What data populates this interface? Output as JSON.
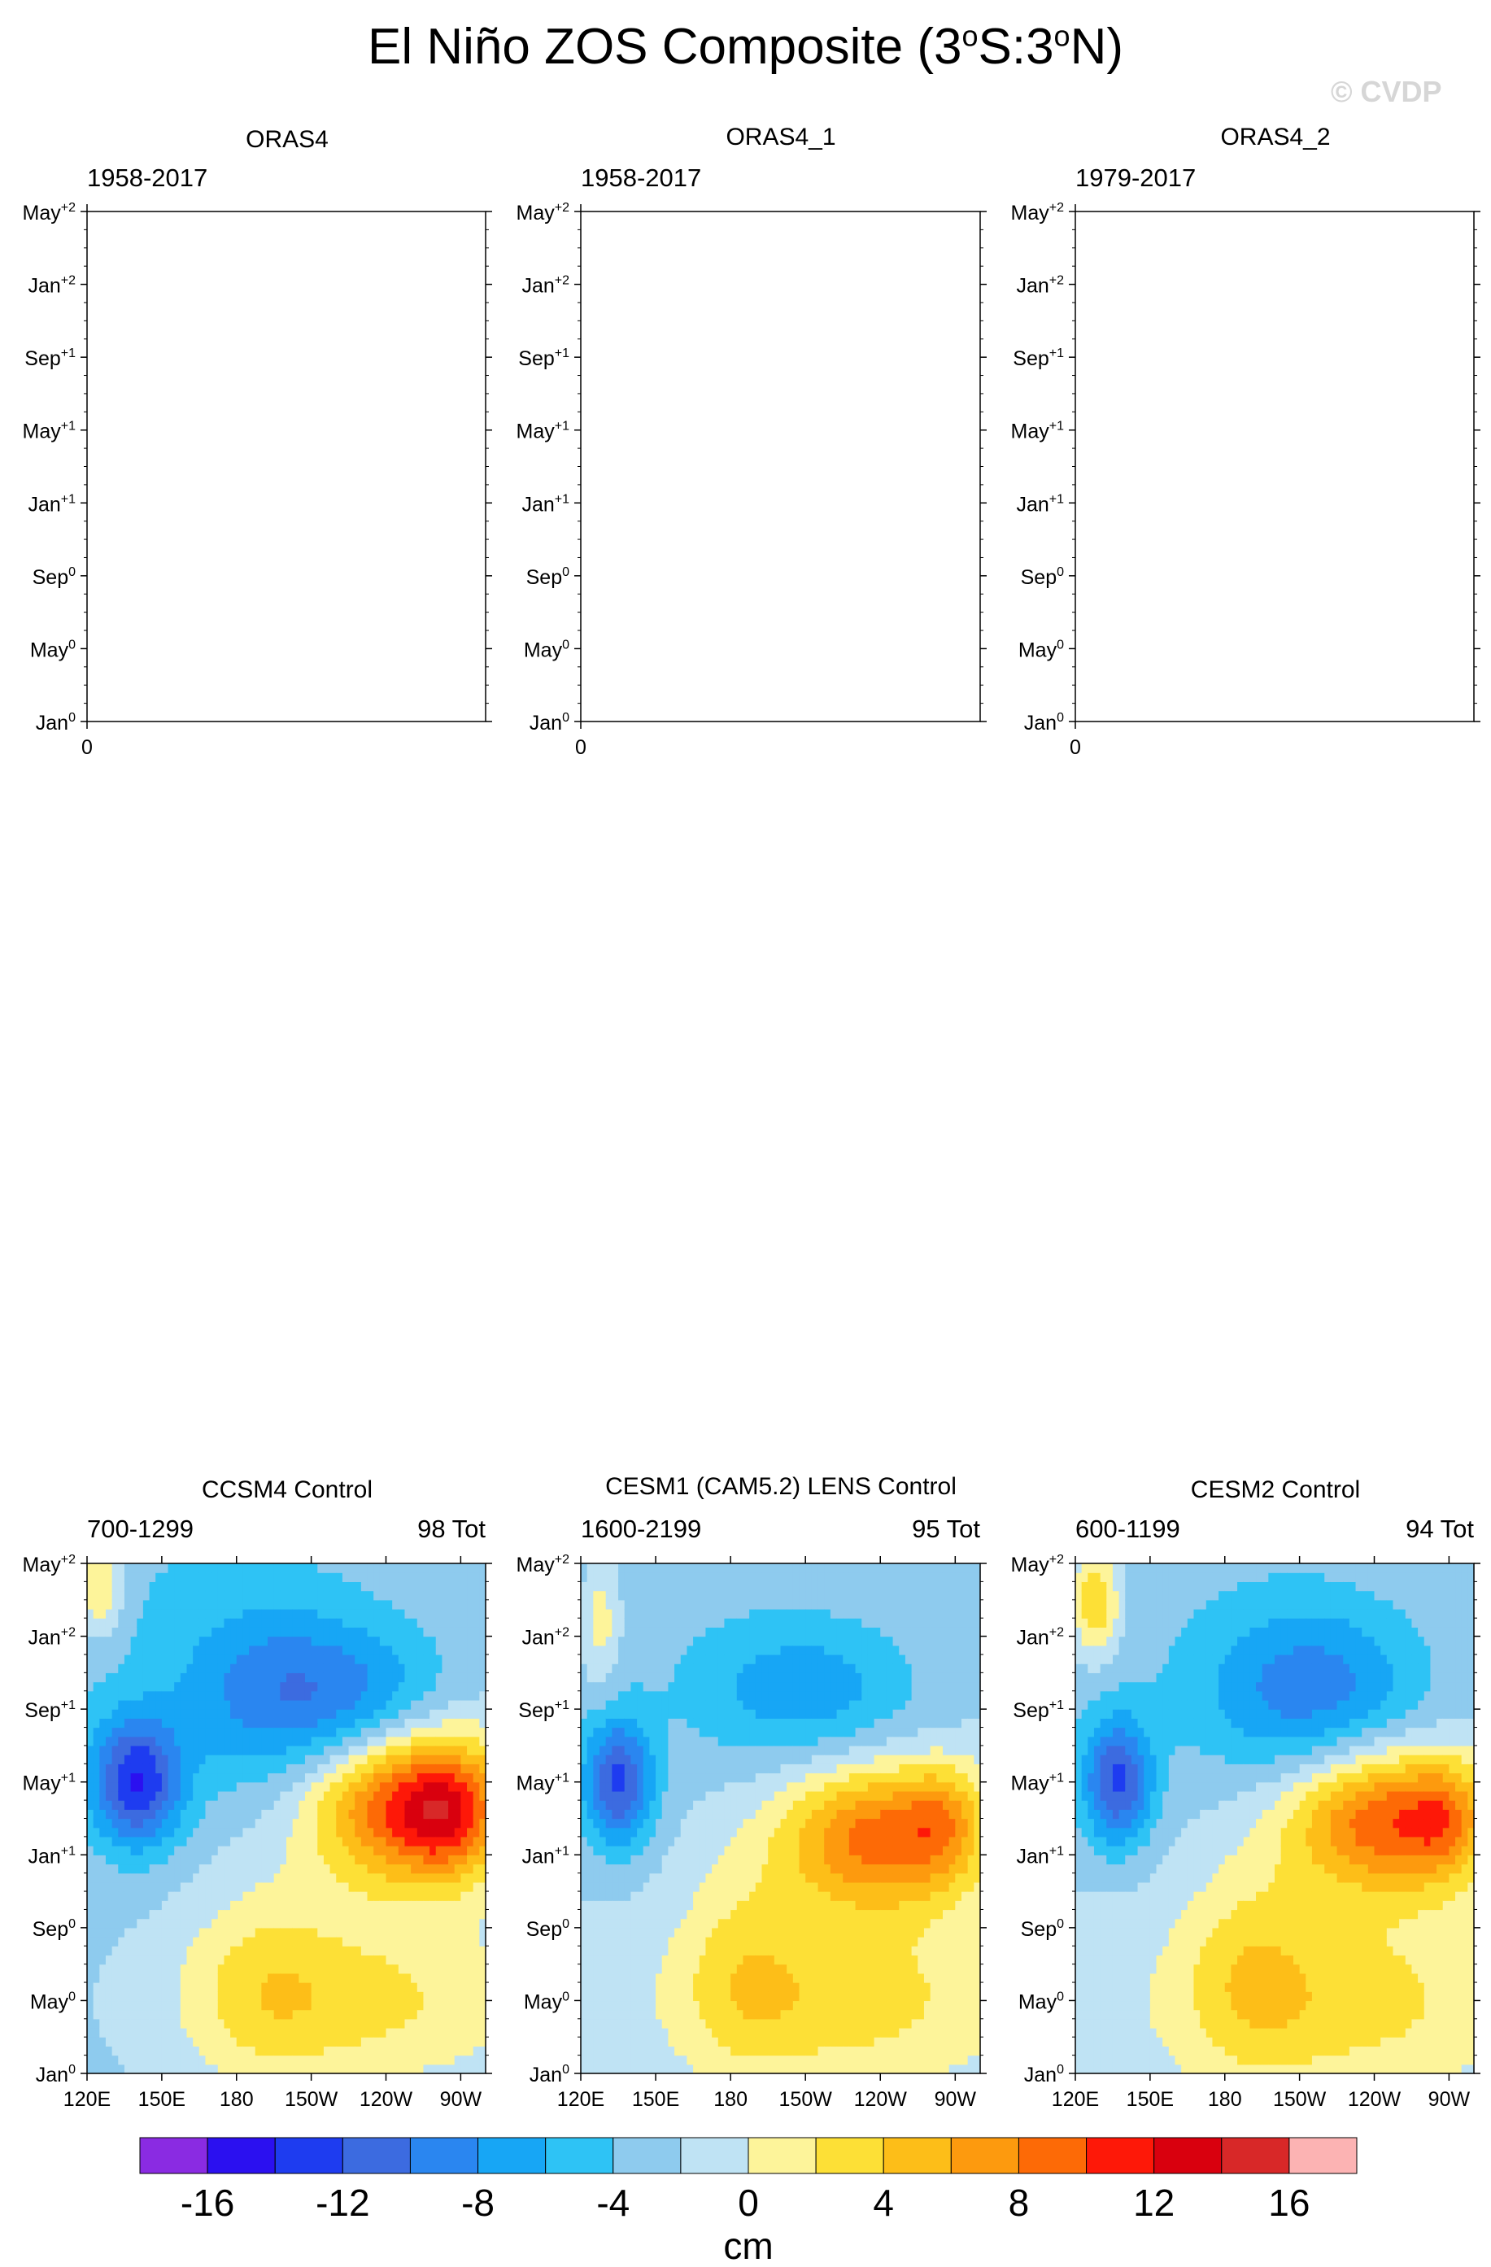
{
  "page": {
    "title_prefix": "El Niño ZOS Composite (3",
    "title_deg1": "o",
    "title_mid": "S:3",
    "title_deg2": "o",
    "title_suffix": "N)",
    "copyright": "© CVDP",
    "colorbar_unit": "cm"
  },
  "chart_data": [
    {
      "type": "heatmap",
      "title": "ORAS4",
      "period": "1958-2017",
      "count": "",
      "empty": true,
      "x_ticks": [
        "0"
      ],
      "y_ticks": [
        {
          "m": "Jan",
          "s": "0"
        },
        {
          "m": "May",
          "s": "0"
        },
        {
          "m": "Sep",
          "s": "0"
        },
        {
          "m": "Jan",
          "s": "+1"
        },
        {
          "m": "May",
          "s": "+1"
        },
        {
          "m": "Sep",
          "s": "+1"
        },
        {
          "m": "Jan",
          "s": "+2"
        },
        {
          "m": "May",
          "s": "+2"
        }
      ]
    },
    {
      "type": "heatmap",
      "title": "ORAS4_1",
      "period": "1958-2017",
      "count": "",
      "empty": true,
      "x_ticks": [
        "0"
      ],
      "y_ticks": [
        {
          "m": "Jan",
          "s": "0"
        },
        {
          "m": "May",
          "s": "0"
        },
        {
          "m": "Sep",
          "s": "0"
        },
        {
          "m": "Jan",
          "s": "+1"
        },
        {
          "m": "May",
          "s": "+1"
        },
        {
          "m": "Sep",
          "s": "+1"
        },
        {
          "m": "Jan",
          "s": "+2"
        },
        {
          "m": "May",
          "s": "+2"
        }
      ]
    },
    {
      "type": "heatmap",
      "title": "ORAS4_2",
      "period": "1979-2017",
      "count": "",
      "empty": true,
      "x_ticks": [
        "0"
      ],
      "y_ticks": [
        {
          "m": "Jan",
          "s": "0"
        },
        {
          "m": "May",
          "s": "0"
        },
        {
          "m": "Sep",
          "s": "0"
        },
        {
          "m": "Jan",
          "s": "+1"
        },
        {
          "m": "May",
          "s": "+1"
        },
        {
          "m": "Sep",
          "s": "+1"
        },
        {
          "m": "Jan",
          "s": "+2"
        },
        {
          "m": "May",
          "s": "+2"
        }
      ]
    },
    {
      "type": "heatmap",
      "title": "CCSM4 Control",
      "period": "700-1299",
      "count": "98 Tot",
      "empty": false,
      "x_ticks": [
        "120E",
        "150E",
        "180",
        "150W",
        "120W",
        "90W"
      ],
      "x_range_deg": [
        120,
        280
      ],
      "y_ticks": [
        {
          "m": "Jan",
          "s": "0"
        },
        {
          "m": "May",
          "s": "0"
        },
        {
          "m": "Sep",
          "s": "0"
        },
        {
          "m": "Jan",
          "s": "+1"
        },
        {
          "m": "May",
          "s": "+1"
        },
        {
          "m": "Sep",
          "s": "+1"
        },
        {
          "m": "Jan",
          "s": "+2"
        },
        {
          "m": "May",
          "s": "+2"
        }
      ],
      "y_range_month": [
        0,
        28
      ],
      "features": [
        {
          "lon": 140,
          "month": 16,
          "amp": -11,
          "dlon": 18,
          "dmon": 3.5
        },
        {
          "lon": 195,
          "month": 21,
          "amp": -6,
          "dlon": 40,
          "dmon": 5
        },
        {
          "lon": 235,
          "month": 20,
          "amp": -5,
          "dlon": 35,
          "dmon": 4
        },
        {
          "lon": 250,
          "month": 15,
          "amp": 14,
          "dlon": 40,
          "dmon": 4.5
        },
        {
          "lon": 265,
          "month": 14,
          "amp": 5,
          "dlon": 18,
          "dmon": 3
        },
        {
          "lon": 230,
          "month": 4,
          "amp": 5,
          "dlon": 70,
          "dmon": 5
        },
        {
          "lon": 125,
          "month": 27,
          "amp": 6,
          "dlon": 9,
          "dmon": 3
        },
        {
          "lon": 190,
          "month": 5,
          "amp": 3,
          "dlon": 30,
          "dmon": 6
        }
      ],
      "base_field": -2.5
    },
    {
      "type": "heatmap",
      "title": "CESM1 (CAM5.2) LENS Control",
      "period": "1600-2199",
      "count": "95 Tot",
      "empty": false,
      "x_ticks": [
        "120E",
        "150E",
        "180",
        "150W",
        "120W",
        "90W"
      ],
      "x_range_deg": [
        120,
        280
      ],
      "y_ticks": [
        {
          "m": "Jan",
          "s": "0"
        },
        {
          "m": "May",
          "s": "0"
        },
        {
          "m": "Sep",
          "s": "0"
        },
        {
          "m": "Jan",
          "s": "+1"
        },
        {
          "m": "May",
          "s": "+1"
        },
        {
          "m": "Sep",
          "s": "+1"
        },
        {
          "m": "Jan",
          "s": "+2"
        },
        {
          "m": "May",
          "s": "+2"
        }
      ],
      "y_range_month": [
        0,
        28
      ],
      "features": [
        {
          "lon": 135,
          "month": 16,
          "amp": -10,
          "dlon": 14,
          "dmon": 3.5
        },
        {
          "lon": 210,
          "month": 21,
          "amp": -5,
          "dlon": 45,
          "dmon": 4
        },
        {
          "lon": 240,
          "month": 13,
          "amp": 11,
          "dlon": 40,
          "dmon": 4
        },
        {
          "lon": 265,
          "month": 14,
          "amp": 4,
          "dlon": 15,
          "dmon": 3
        },
        {
          "lon": 225,
          "month": 4,
          "amp": 5,
          "dlon": 70,
          "dmon": 5
        },
        {
          "lon": 128,
          "month": 25,
          "amp": 4,
          "dlon": 8,
          "dmon": 4
        },
        {
          "lon": 185,
          "month": 6,
          "amp": 3,
          "dlon": 25,
          "dmon": 6
        }
      ],
      "base_field": -2.0
    },
    {
      "type": "heatmap",
      "title": "CESM2 Control",
      "period": "600-1199",
      "count": "94 Tot",
      "empty": false,
      "x_ticks": [
        "120E",
        "150E",
        "180",
        "150W",
        "120W",
        "90W"
      ],
      "x_range_deg": [
        120,
        280
      ],
      "y_ticks": [
        {
          "m": "Jan",
          "s": "0"
        },
        {
          "m": "May",
          "s": "0"
        },
        {
          "m": "Sep",
          "s": "0"
        },
        {
          "m": "Jan",
          "s": "+1"
        },
        {
          "m": "May",
          "s": "+1"
        },
        {
          "m": "Sep",
          "s": "+1"
        },
        {
          "m": "Jan",
          "s": "+2"
        },
        {
          "m": "May",
          "s": "+2"
        }
      ],
      "y_range_month": [
        0,
        28
      ],
      "features": [
        {
          "lon": 137,
          "month": 16,
          "amp": -10,
          "dlon": 14,
          "dmon": 3.5
        },
        {
          "lon": 215,
          "month": 21,
          "amp": -7,
          "dlon": 45,
          "dmon": 5
        },
        {
          "lon": 245,
          "month": 14,
          "amp": 12,
          "dlon": 40,
          "dmon": 4
        },
        {
          "lon": 268,
          "month": 14,
          "amp": 4,
          "dlon": 14,
          "dmon": 3
        },
        {
          "lon": 225,
          "month": 4,
          "amp": 5,
          "dlon": 75,
          "dmon": 5.5
        },
        {
          "lon": 128,
          "month": 26,
          "amp": 7,
          "dlon": 10,
          "dmon": 3
        },
        {
          "lon": 190,
          "month": 6,
          "amp": 3,
          "dlon": 25,
          "dmon": 6
        }
      ],
      "base_field": -2.0
    }
  ],
  "colorbar": {
    "levels": [
      -18,
      -16,
      -14,
      -12,
      -10,
      -8,
      -6,
      -4,
      -2,
      0,
      2,
      4,
      6,
      8,
      10,
      12,
      14,
      16,
      18
    ],
    "colors": [
      "#8a2be2",
      "#2b10f0",
      "#1e3cf0",
      "#3c6be0",
      "#2a86f0",
      "#17a6f5",
      "#2ec3f5",
      "#8ecbee",
      "#bfe3f4",
      "#fdf49a",
      "#fde036",
      "#fdbe18",
      "#fd9a0e",
      "#fd6a06",
      "#fe1808",
      "#d9000e",
      "#d82828",
      "#fcb3b3"
    ],
    "tick_labels": [
      "-16",
      "-12",
      "-8",
      "-4",
      "0",
      "4",
      "8",
      "12",
      "16"
    ]
  }
}
